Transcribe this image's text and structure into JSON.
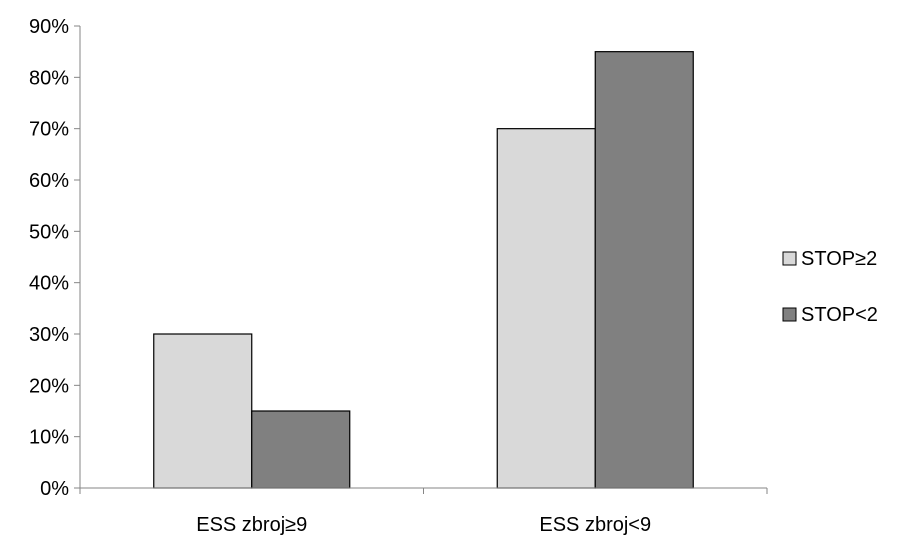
{
  "chart_data": {
    "type": "bar",
    "categories": [
      "ESS zbroj≥9",
      "ESS zbroj<9"
    ],
    "series": [
      {
        "name": "STOP≥2",
        "values": [
          30,
          70
        ],
        "color": "#d9d9d9"
      },
      {
        "name": "STOP<2",
        "values": [
          15,
          85
        ],
        "color": "#808080"
      }
    ],
    "ylim": [
      0,
      90
    ],
    "yticks": [
      0,
      10,
      20,
      30,
      40,
      50,
      60,
      70,
      80,
      90
    ],
    "ytick_suffix": "%",
    "grid": false,
    "legend_position": "right",
    "bar_outline_color": "#000000",
    "axis_color": "#868686"
  }
}
